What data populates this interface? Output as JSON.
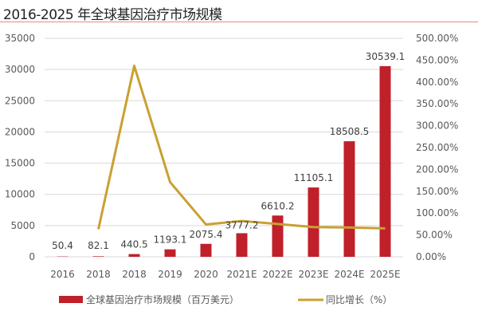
{
  "chart_data": {
    "type": "bar+line",
    "title": "2016-2025 年全球基因治疗市场规模",
    "categories": [
      "2016",
      "2018",
      "2018",
      "2019",
      "2020",
      "2021E",
      "2022E",
      "2023E",
      "2024E",
      "2025E"
    ],
    "series": [
      {
        "name": "全球基因治疗市场规模（百万美元）",
        "type": "bar",
        "axis": "left",
        "color": "#C0202A",
        "values": [
          50.4,
          82.1,
          440.5,
          1193.1,
          2075.4,
          3777.2,
          6610.2,
          11105.1,
          18508.5,
          30539.1
        ],
        "labels": [
          "50.4",
          "82.1",
          "440.5",
          "1193.1",
          "2075.4",
          "3777.2",
          "6610.2",
          "11105.1",
          "18508.5",
          "30539.1"
        ]
      },
      {
        "name": "同比增长（%）",
        "type": "line",
        "axis": "right",
        "color": "#C9A032",
        "values": [
          null,
          63,
          437,
          171,
          74,
          82,
          75,
          68,
          67,
          65
        ]
      }
    ],
    "y_left": {
      "lim": [
        0,
        35000
      ],
      "ticks": [
        "0",
        "5000",
        "10000",
        "15000",
        "20000",
        "25000",
        "30000",
        "35000"
      ]
    },
    "y_right": {
      "lim": [
        0,
        500
      ],
      "ticks": [
        "0.00%",
        "50.00%",
        "100.00%",
        "150.00%",
        "200.00%",
        "250.00%",
        "300.00%",
        "350.00%",
        "400.00%",
        "450.00%",
        "500.00%"
      ]
    },
    "grid": true,
    "legend": "bottom"
  }
}
